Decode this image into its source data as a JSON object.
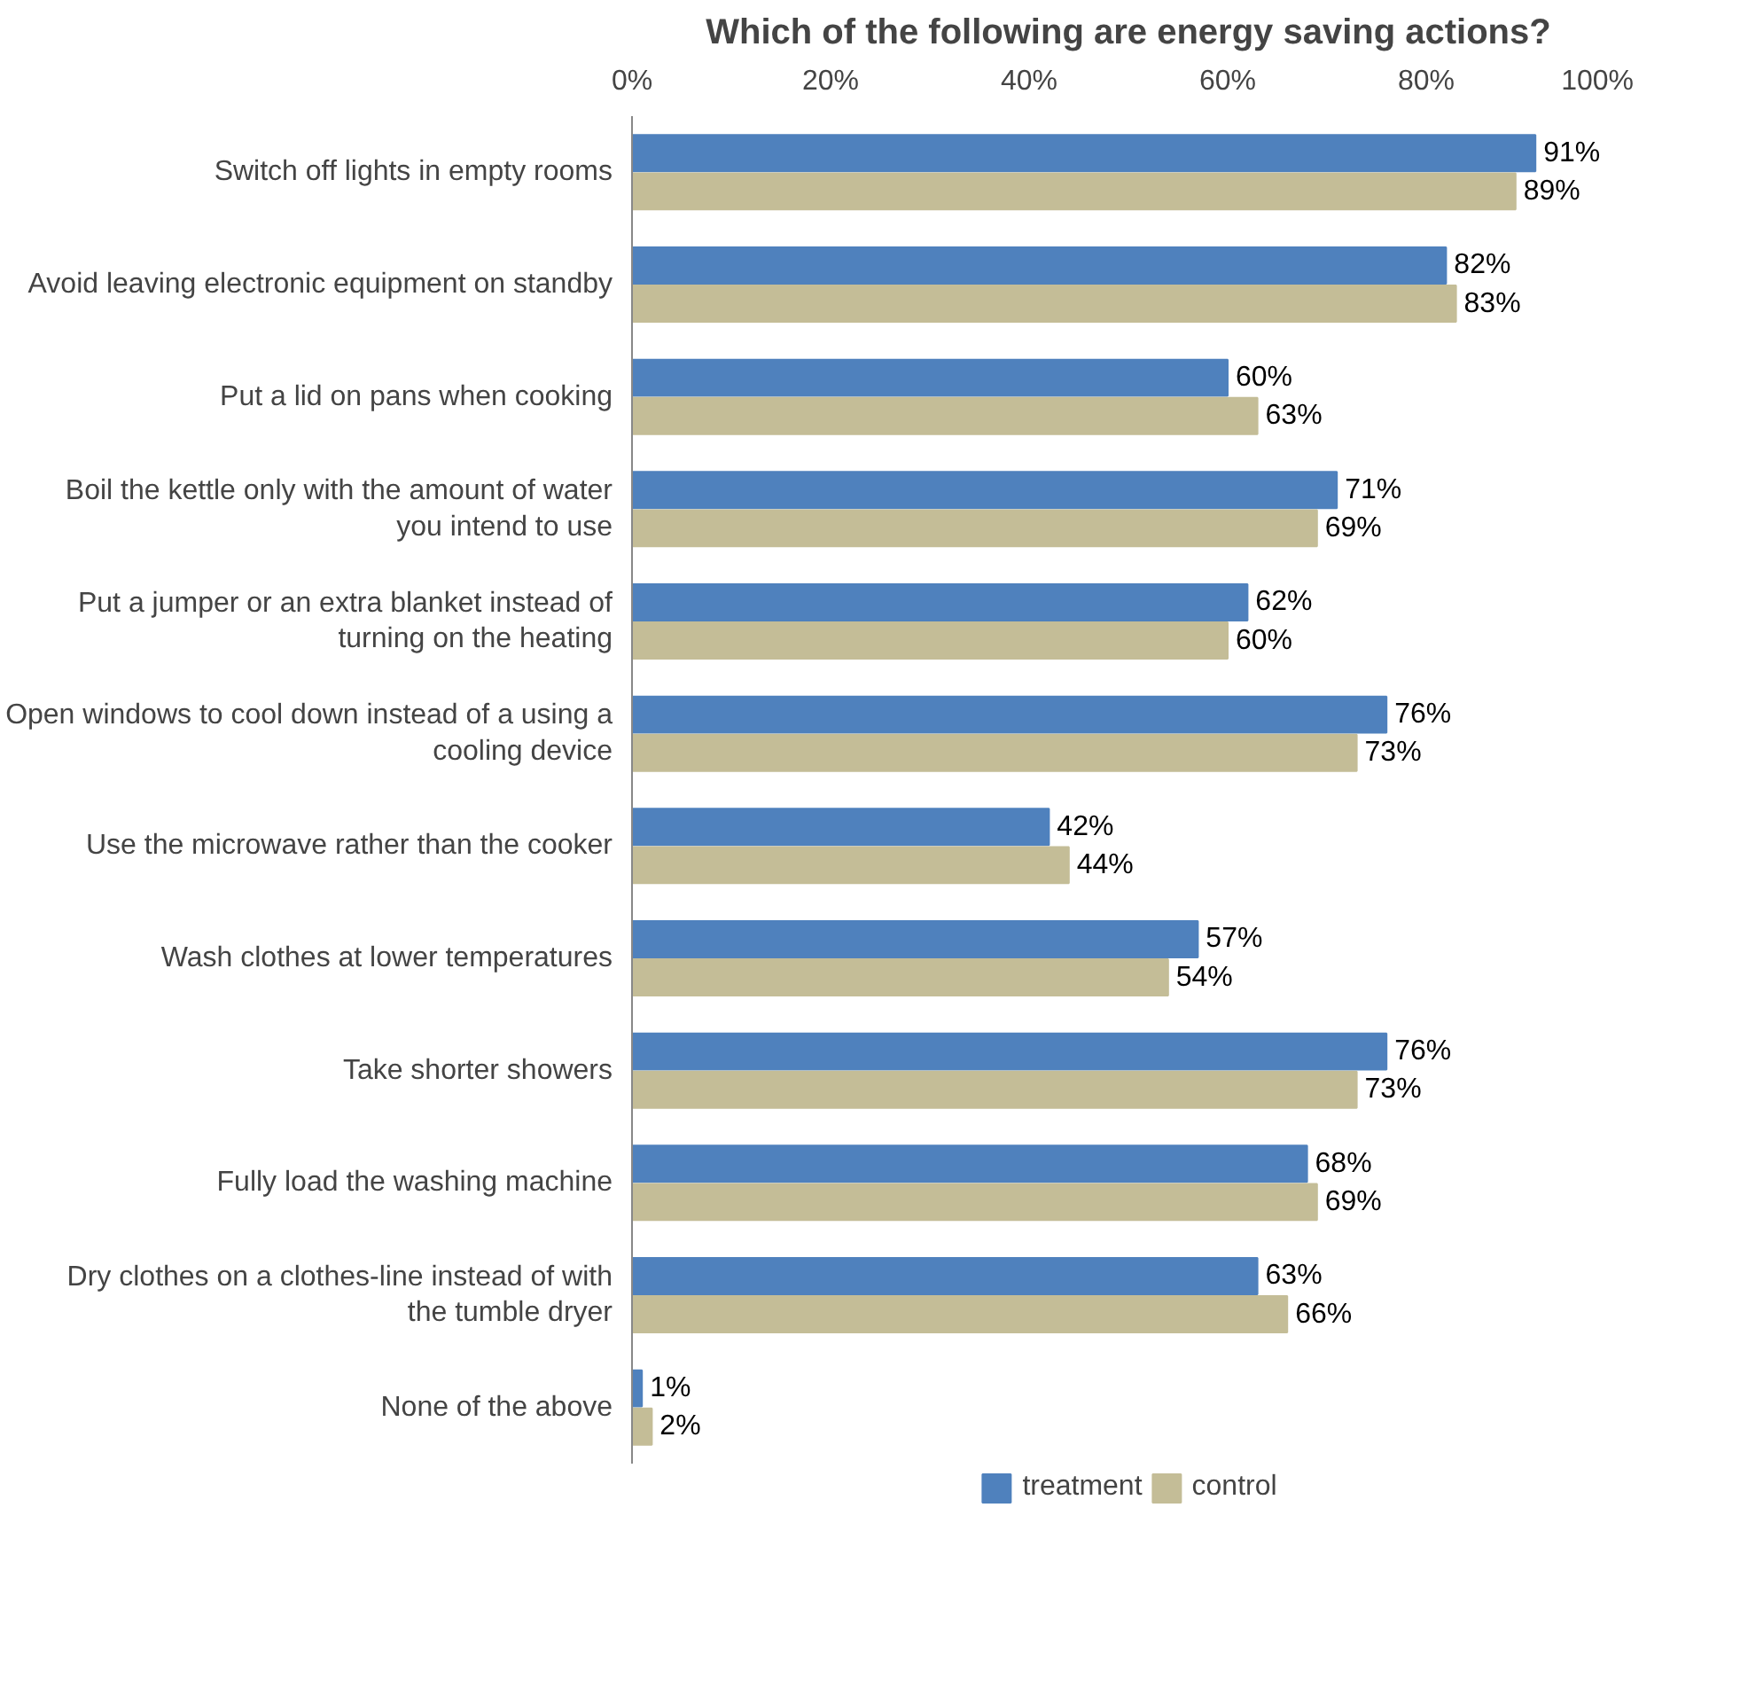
{
  "chart_data": {
    "type": "bar",
    "orientation": "horizontal",
    "title": "Which of the following are energy saving actions?",
    "categories": [
      "Switch off lights in empty rooms",
      "Avoid leaving electronic equipment on standby",
      "Put a lid on pans when cooking",
      "Boil the kettle only with the amount of water you intend to use",
      "Put a jumper or an extra blanket instead of turning on the heating",
      "Open windows to cool down instead of a using a cooling device",
      "Use the microwave rather than the cooker",
      "Wash clothes at lower temperatures",
      "Take shorter showers",
      "Fully load the washing machine",
      "Dry clothes on a clothes-line instead of with the tumble dryer",
      "None of the above"
    ],
    "series": [
      {
        "name": "treatment",
        "color": "#4f81bd",
        "values": [
          91,
          82,
          60,
          71,
          62,
          76,
          42,
          57,
          76,
          68,
          63,
          1
        ],
        "value_labels": [
          "91%",
          "82%",
          "60%",
          "71%",
          "62%",
          "76%",
          "42%",
          "57%",
          "76%",
          "68%",
          "63%",
          "1%"
        ]
      },
      {
        "name": "control",
        "color": "#c4bd97",
        "values": [
          89,
          83,
          63,
          69,
          60,
          73,
          44,
          54,
          73,
          69,
          66,
          2
        ],
        "value_labels": [
          "89%",
          "83%",
          "63%",
          "69%",
          "60%",
          "73%",
          "44%",
          "54%",
          "73%",
          "69%",
          "66%",
          "2%"
        ]
      }
    ],
    "xlim": [
      0,
      100
    ],
    "xticks": [
      {
        "value": 0,
        "label": "0%"
      },
      {
        "value": 20,
        "label": "20%"
      },
      {
        "value": 40,
        "label": "40%"
      },
      {
        "value": 60,
        "label": "60%"
      },
      {
        "value": 80,
        "label": "80%"
      },
      {
        "value": 100,
        "label": "100%"
      }
    ],
    "grid": false,
    "legend": "bottom"
  }
}
